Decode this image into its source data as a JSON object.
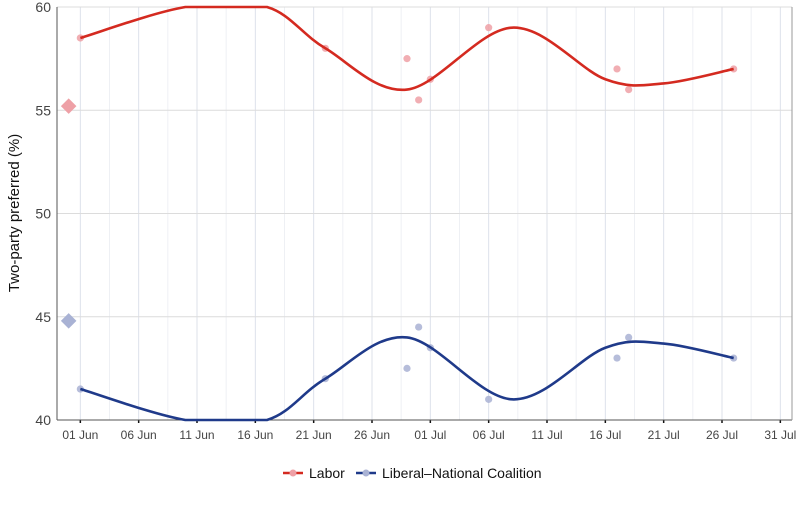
{
  "chart_data": {
    "type": "line",
    "ylabel": "Two-party preferred (%)",
    "xlabel": "",
    "ylim": [
      40,
      60
    ],
    "yticks": [
      40,
      45,
      50,
      55,
      60
    ],
    "xlim": [
      "2022-05-30",
      "2022-08-01"
    ],
    "xticks": [
      {
        "date": "2022-06-01",
        "label": "01 Jun"
      },
      {
        "date": "2022-06-06",
        "label": "06 Jun"
      },
      {
        "date": "2022-06-11",
        "label": "11 Jun"
      },
      {
        "date": "2022-06-16",
        "label": "16 Jun"
      },
      {
        "date": "2022-06-21",
        "label": "21 Jun"
      },
      {
        "date": "2022-06-26",
        "label": "26 Jun"
      },
      {
        "date": "2022-07-01",
        "label": "01 Jul"
      },
      {
        "date": "2022-07-06",
        "label": "06 Jul"
      },
      {
        "date": "2022-07-11",
        "label": "11 Jul"
      },
      {
        "date": "2022-07-16",
        "label": "16 Jul"
      },
      {
        "date": "2022-07-21",
        "label": "21 Jul"
      },
      {
        "date": "2022-07-26",
        "label": "26 Jul"
      },
      {
        "date": "2022-07-31",
        "label": "31 Jul"
      }
    ],
    "grid": true,
    "legend_position": "bottom",
    "series": [
      {
        "name": "Labor",
        "color": "#d42a20",
        "point_color": "#eea0a6",
        "election_result": {
          "date": "2022-05-31",
          "value": 55.2
        },
        "points": [
          {
            "date": "2022-06-01",
            "value": 58.5
          },
          {
            "date": "2022-06-22",
            "value": 58.0
          },
          {
            "date": "2022-06-29",
            "value": 57.5
          },
          {
            "date": "2022-06-30",
            "value": 55.5
          },
          {
            "date": "2022-07-01",
            "value": 56.5
          },
          {
            "date": "2022-07-06",
            "value": 59.0
          },
          {
            "date": "2022-07-17",
            "value": 57.0
          },
          {
            "date": "2022-07-18",
            "value": 56.0
          },
          {
            "date": "2022-07-27",
            "value": 57.0
          }
        ],
        "trend": [
          {
            "date": "2022-06-01",
            "value": 58.5
          },
          {
            "date": "2022-06-10",
            "value": 60.0
          },
          {
            "date": "2022-06-17",
            "value": 60.0
          },
          {
            "date": "2022-06-22",
            "value": 58.0
          },
          {
            "date": "2022-06-29",
            "value": 56.0
          },
          {
            "date": "2022-07-08",
            "value": 59.0
          },
          {
            "date": "2022-07-16",
            "value": 56.5
          },
          {
            "date": "2022-07-21",
            "value": 56.3
          },
          {
            "date": "2022-07-27",
            "value": 57.0
          }
        ]
      },
      {
        "name": "Liberal–National Coalition",
        "color": "#1f3a8a",
        "point_color": "#a9b2d4",
        "election_result": {
          "date": "2022-05-31",
          "value": 44.8
        },
        "points": [
          {
            "date": "2022-06-01",
            "value": 41.5
          },
          {
            "date": "2022-06-22",
            "value": 42.0
          },
          {
            "date": "2022-06-29",
            "value": 42.5
          },
          {
            "date": "2022-06-30",
            "value": 44.5
          },
          {
            "date": "2022-07-01",
            "value": 43.5
          },
          {
            "date": "2022-07-06",
            "value": 41.0
          },
          {
            "date": "2022-07-17",
            "value": 43.0
          },
          {
            "date": "2022-07-18",
            "value": 44.0
          },
          {
            "date": "2022-07-27",
            "value": 43.0
          }
        ],
        "trend": [
          {
            "date": "2022-06-01",
            "value": 41.5
          },
          {
            "date": "2022-06-10",
            "value": 40.0
          },
          {
            "date": "2022-06-17",
            "value": 40.0
          },
          {
            "date": "2022-06-22",
            "value": 42.0
          },
          {
            "date": "2022-06-29",
            "value": 44.0
          },
          {
            "date": "2022-07-08",
            "value": 41.0
          },
          {
            "date": "2022-07-16",
            "value": 43.5
          },
          {
            "date": "2022-07-21",
            "value": 43.7
          },
          {
            "date": "2022-07-27",
            "value": 43.0
          }
        ]
      }
    ]
  }
}
